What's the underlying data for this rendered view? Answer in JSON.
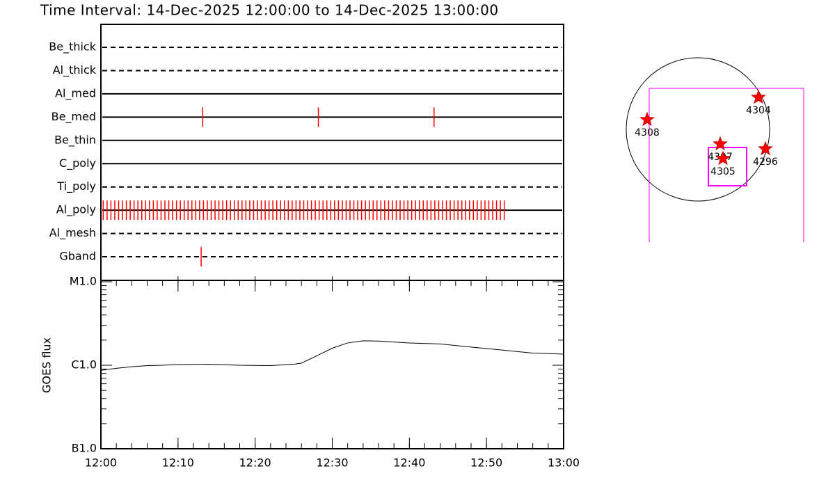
{
  "chart_data": [
    {
      "type": "timeline",
      "title": "Time Interval: 14-Dec-2025 12:00:00 to 14-Dec-2025 13:00:00",
      "categories": [
        "Be_thick",
        "Al_thick",
        "Al_med",
        "Be_med",
        "Be_thin",
        "C_poly",
        "Ti_poly",
        "Al_poly",
        "Al_mesh",
        "Gband"
      ],
      "line_styles": [
        "dashed",
        "dashed",
        "solid",
        "solid",
        "solid",
        "solid",
        "dashed",
        "solid",
        "dashed",
        "dashed"
      ],
      "events": [
        [],
        [],
        [],
        [
          13.2,
          28.2,
          43.2
        ],
        [],
        [],
        [],
        [
          0.3,
          0.8,
          1.3,
          1.8,
          2.3,
          2.8,
          3.3,
          3.8,
          4.3,
          4.8,
          5.3,
          5.8,
          6.3,
          6.8,
          7.3,
          7.8,
          8.3,
          8.8,
          9.3,
          9.8,
          10.3,
          10.8,
          11.3,
          11.8,
          12.3,
          12.8,
          13.3,
          13.8,
          14.3,
          14.8,
          15.3,
          15.8,
          16.3,
          16.8,
          17.3,
          17.8,
          18.3,
          18.8,
          19.3,
          19.8,
          20.3,
          20.8,
          21.3,
          21.8,
          22.3,
          22.8,
          23.3,
          23.8,
          24.3,
          24.8,
          25.3,
          25.8,
          26.3,
          26.8,
          27.3,
          27.8,
          28.3,
          28.8,
          29.3,
          29.8,
          30.3,
          30.8,
          31.3,
          31.8,
          32.3,
          32.8,
          33.3,
          33.8,
          34.3,
          34.8,
          35.3,
          35.8,
          36.3,
          36.8,
          37.3,
          37.8,
          38.3,
          38.8,
          39.3,
          39.8,
          40.3,
          40.8,
          41.3,
          41.8,
          42.3,
          42.8,
          43.3,
          43.8,
          44.3,
          44.8,
          45.3,
          45.8,
          46.3,
          46.8,
          47.3,
          47.8,
          48.3,
          48.8,
          49.3,
          49.8,
          50.3,
          50.8,
          51.3,
          51.8,
          52.3
        ],
        [],
        [
          13.0
        ]
      ],
      "color": "#ff0000",
      "xlim": [
        0,
        60
      ]
    },
    {
      "type": "line",
      "ylabel": "GOES flux",
      "x": [
        0,
        2,
        4,
        6,
        8,
        10,
        14,
        18,
        22,
        25,
        26,
        28,
        30,
        32,
        34,
        36,
        40,
        44,
        48,
        52,
        56,
        60
      ],
      "values": [
        8.7e-07,
        9.2e-07,
        9.6e-07,
        9.9e-07,
        1e-06,
        1.02e-06,
        1.03e-06,
        1e-06,
        9.9e-07,
        1.03e-06,
        1.06e-06,
        1.3e-06,
        1.6e-06,
        1.85e-06,
        1.96e-06,
        1.95e-06,
        1.85e-06,
        1.8e-06,
        1.65e-06,
        1.52e-06,
        1.4e-06,
        1.36e-06
      ],
      "color": "#000000",
      "log_scale": true,
      "xlim": [
        0,
        60
      ],
      "xticks": [
        {
          "value": 0,
          "label": "12:00"
        },
        {
          "value": 10,
          "label": "12:10"
        },
        {
          "value": 20,
          "label": "12:20"
        },
        {
          "value": 30,
          "label": "12:30"
        },
        {
          "value": 40,
          "label": "12:40"
        },
        {
          "value": 50,
          "label": "12:50"
        },
        {
          "value": 60,
          "label": "13:00"
        }
      ],
      "ylim": [
        1e-07,
        1e-05
      ],
      "yticks": [
        {
          "value": 1e-07,
          "label": "B1.0"
        },
        {
          "value": 1e-06,
          "label": "C1.0"
        },
        {
          "value": 1e-05,
          "label": "M1.0"
        }
      ]
    }
  ],
  "map": {
    "labels": [
      "4304",
      "4308",
      "4307",
      "4305",
      "4296"
    ]
  }
}
